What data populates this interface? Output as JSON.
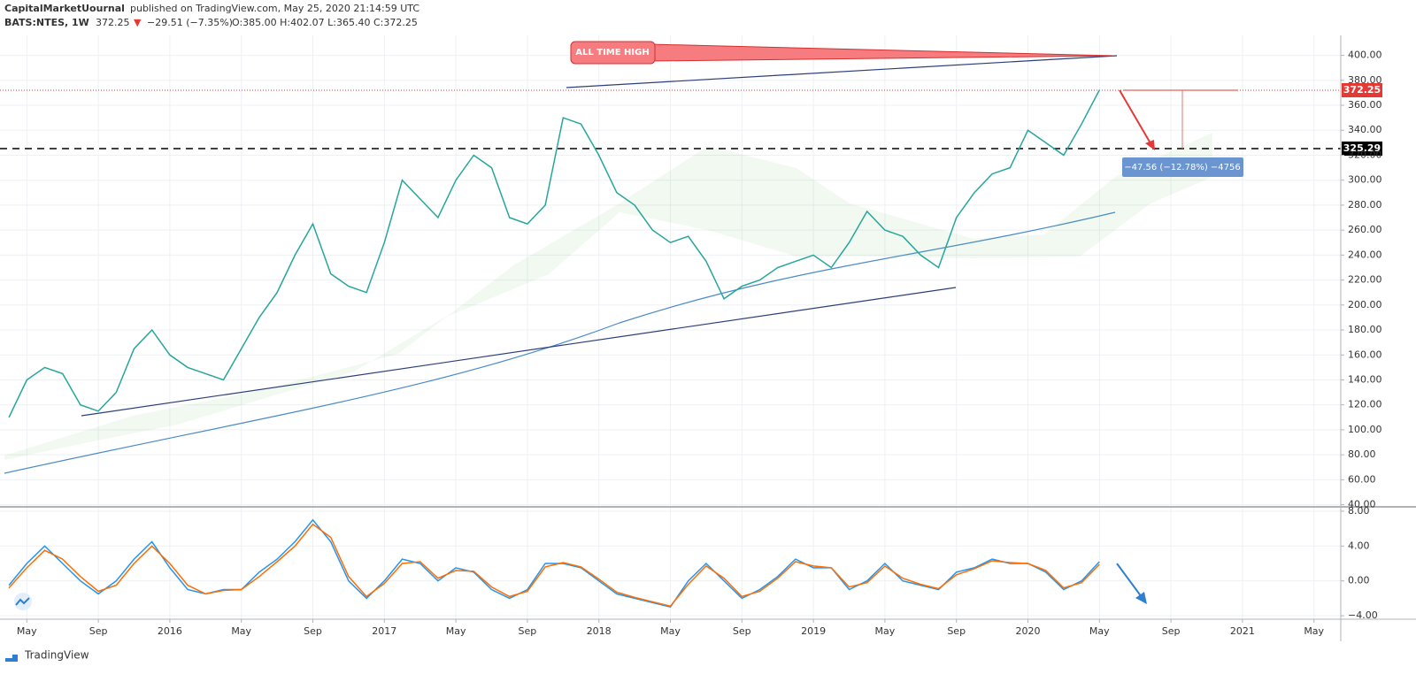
{
  "header": {
    "author": "CapitalMarketUournal",
    "published": "published on TradingView.com, May 25, 2020 21:14:59 UTC",
    "symbol": "BATS:NTES, 1W",
    "last": "372.25",
    "arrow": "▼",
    "change": "−29.51 (−7.35%)",
    "ohlc": "O:385.00 H:402.07 L:365.40 C:372.25"
  },
  "annotations": {
    "all_time_high": "ALL TIME HIGH",
    "price_label": "372.25",
    "level_label": "325.29",
    "measure": "−47.56 (−12.78%) −4756"
  },
  "footer": "TradingView",
  "chart_data": [
    {
      "type": "line",
      "categories": [
        "2015-04",
        "2015-05",
        "2015-06",
        "2015-07",
        "2015-08",
        "2015-09",
        "2015-10",
        "2015-11",
        "2015-12",
        "2016-01",
        "2016-02",
        "2016-03",
        "2016-04",
        "2016-05",
        "2016-06",
        "2016-07",
        "2016-08",
        "2016-09",
        "2016-10",
        "2016-11",
        "2016-12",
        "2017-01",
        "2017-02",
        "2017-03",
        "2017-04",
        "2017-05",
        "2017-06",
        "2017-07",
        "2017-08",
        "2017-09",
        "2017-10",
        "2017-11",
        "2017-12",
        "2018-01",
        "2018-02",
        "2018-03",
        "2018-04",
        "2018-05",
        "2018-06",
        "2018-07",
        "2018-08",
        "2018-09",
        "2018-10",
        "2018-11",
        "2018-12",
        "2019-01",
        "2019-02",
        "2019-03",
        "2019-04",
        "2019-05",
        "2019-06",
        "2019-07",
        "2019-08",
        "2019-09",
        "2019-10",
        "2019-11",
        "2019-12",
        "2020-01",
        "2020-02",
        "2020-03",
        "2020-04",
        "2020-05"
      ],
      "series": [
        {
          "color": "#26a69a",
          "values": [
            110,
            140,
            150,
            145,
            120,
            115,
            130,
            165,
            180,
            160,
            150,
            145,
            140,
            165,
            190,
            210,
            240,
            265,
            225,
            215,
            210,
            250,
            300,
            285,
            270,
            300,
            320,
            310,
            270,
            265,
            280,
            350,
            345,
            320,
            290,
            280,
            260,
            250,
            255,
            235,
            205,
            215,
            220,
            230,
            235,
            240,
            230,
            250,
            275,
            260,
            255,
            240,
            230,
            270,
            290,
            305,
            310,
            340,
            330,
            320,
            345,
            372.25
          ]
        }
      ],
      "xlim": [
        -0.5,
        74.5
      ],
      "xticks": [
        {
          "value": 1,
          "label": "May"
        },
        {
          "value": 5,
          "label": "Sep"
        },
        {
          "value": 9,
          "label": "2016"
        },
        {
          "value": 13,
          "label": "May"
        },
        {
          "value": 17,
          "label": "Sep"
        },
        {
          "value": 21,
          "label": "2017"
        },
        {
          "value": 25,
          "label": "May"
        },
        {
          "value": 29,
          "label": "Sep"
        },
        {
          "value": 33,
          "label": "2018"
        },
        {
          "value": 37,
          "label": "May"
        },
        {
          "value": 41,
          "label": "Sep"
        },
        {
          "value": 45,
          "label": "2019"
        },
        {
          "value": 49,
          "label": "May"
        },
        {
          "value": 53,
          "label": "Sep"
        },
        {
          "value": 57,
          "label": "2020"
        },
        {
          "value": 61,
          "label": "May"
        },
        {
          "value": 65,
          "label": "Sep"
        },
        {
          "value": 69,
          "label": "2021"
        },
        {
          "value": 73,
          "label": "May"
        }
      ],
      "ylim": [
        39,
        416
      ],
      "yticks": [
        {
          "value": 40,
          "label": "40.00"
        },
        {
          "value": 60,
          "label": "60.00"
        },
        {
          "value": 80,
          "label": "80.00"
        },
        {
          "value": 100,
          "label": "100.00"
        },
        {
          "value": 120,
          "label": "120.00"
        },
        {
          "value": 140,
          "label": "140.00"
        },
        {
          "value": 160,
          "label": "160.00"
        },
        {
          "value": 180,
          "label": "180.00"
        },
        {
          "value": 200,
          "label": "200.00"
        },
        {
          "value": 220,
          "label": "220.00"
        },
        {
          "value": 240,
          "label": "240.00"
        },
        {
          "value": 260,
          "label": "260.00"
        },
        {
          "value": 280,
          "label": "280.00"
        },
        {
          "value": 300,
          "label": "300.00"
        },
        {
          "value": 320,
          "label": "320.00"
        },
        {
          "value": 340,
          "label": "340.00"
        },
        {
          "value": 360,
          "label": "360.00"
        },
        {
          "value": 380,
          "label": "380.00"
        },
        {
          "value": 400,
          "label": "400.00"
        }
      ],
      "grid": true
    },
    {
      "type": "line",
      "series": [
        {
          "color": "#2196f3",
          "values": [
            -0.5,
            2,
            4,
            2,
            0,
            -1.5,
            0,
            2.5,
            4.5,
            1.5,
            -1,
            -1.5,
            -1,
            -1,
            1,
            2.5,
            4.5,
            7,
            4.5,
            0,
            -2,
            0,
            2.5,
            2,
            0,
            1.5,
            1,
            -1,
            -2,
            -1,
            2,
            2,
            1.5,
            0,
            -1.5,
            -2,
            -2.5,
            -3,
            0,
            2,
            0,
            -2,
            -1,
            0.5,
            2.5,
            1.5,
            1.5,
            -1,
            0,
            2,
            0,
            -0.5,
            -1,
            1,
            1.5,
            2.5,
            2,
            2,
            1,
            -1,
            0,
            2.2
          ]
        },
        {
          "color": "#ff6d00",
          "values": [
            -0.8,
            1.5,
            3.5,
            2.5,
            0.5,
            -1.2,
            -0.5,
            2,
            4,
            2,
            -0.5,
            -1.5,
            -1.1,
            -1,
            0.5,
            2.2,
            4,
            6.5,
            5,
            0.5,
            -1.8,
            -0.3,
            2,
            2.2,
            0.3,
            1.2,
            1.1,
            -0.7,
            -1.8,
            -1.2,
            1.6,
            2.1,
            1.6,
            0.2,
            -1.3,
            -1.9,
            -2.4,
            -2.9,
            -0.4,
            1.7,
            0.3,
            -1.8,
            -1.2,
            0.3,
            2.2,
            1.7,
            1.5,
            -0.7,
            -0.2,
            1.7,
            0.3,
            -0.4,
            -0.9,
            0.7,
            1.4,
            2.3,
            2.1,
            2,
            1.2,
            -0.8,
            -0.2,
            1.9
          ]
        }
      ],
      "xlim": [
        -0.5,
        74.5
      ],
      "ylim": [
        -4.4,
        8.5
      ],
      "yticks": [
        {
          "value": 8,
          "label": "8.00"
        },
        {
          "value": 4,
          "label": "4.00"
        },
        {
          "value": 0,
          "label": "0.00"
        },
        {
          "value": -4,
          "label": "−4.00"
        }
      ],
      "grid": true
    }
  ]
}
